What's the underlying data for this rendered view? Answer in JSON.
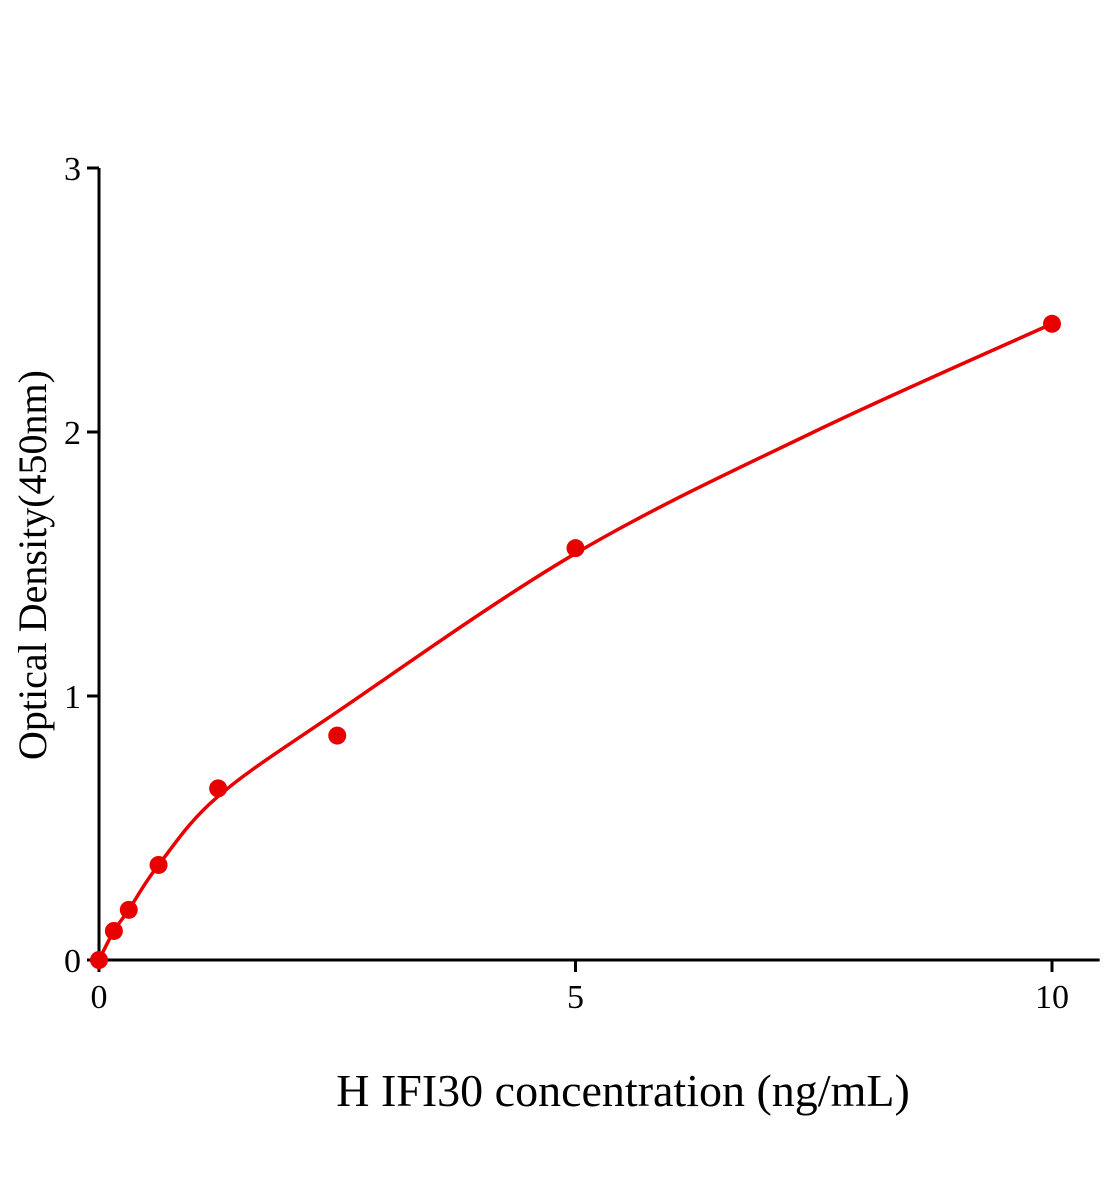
{
  "chart_data": {
    "type": "scatter",
    "title": "",
    "xlabel": "H IFI30 concentration (ng/mL)",
    "ylabel": "Optical Density(450nm)",
    "xlim": [
      0,
      10.5
    ],
    "ylim": [
      0,
      3
    ],
    "xticks": [
      "0",
      "5",
      "10"
    ],
    "xtick_values": [
      0,
      5,
      10
    ],
    "yticks": [
      "0",
      "1",
      "2",
      "3"
    ],
    "ytick_values": [
      0,
      1,
      2,
      3
    ],
    "grid": false,
    "legend": "none",
    "color": "#e80000",
    "points": {
      "x": [
        0,
        0.156,
        0.3125,
        0.625,
        1.25,
        2.5,
        5,
        10
      ],
      "y": [
        0.0,
        0.11,
        0.19,
        0.36,
        0.65,
        0.85,
        1.56,
        2.41
      ]
    },
    "fit_curve": {
      "x": [
        0,
        0.156,
        0.3125,
        0.625,
        1.25,
        2.5,
        5,
        7.5,
        10
      ],
      "y": [
        0,
        0.11,
        0.19,
        0.36,
        0.62,
        0.94,
        1.54,
        2.0,
        2.41
      ]
    }
  }
}
